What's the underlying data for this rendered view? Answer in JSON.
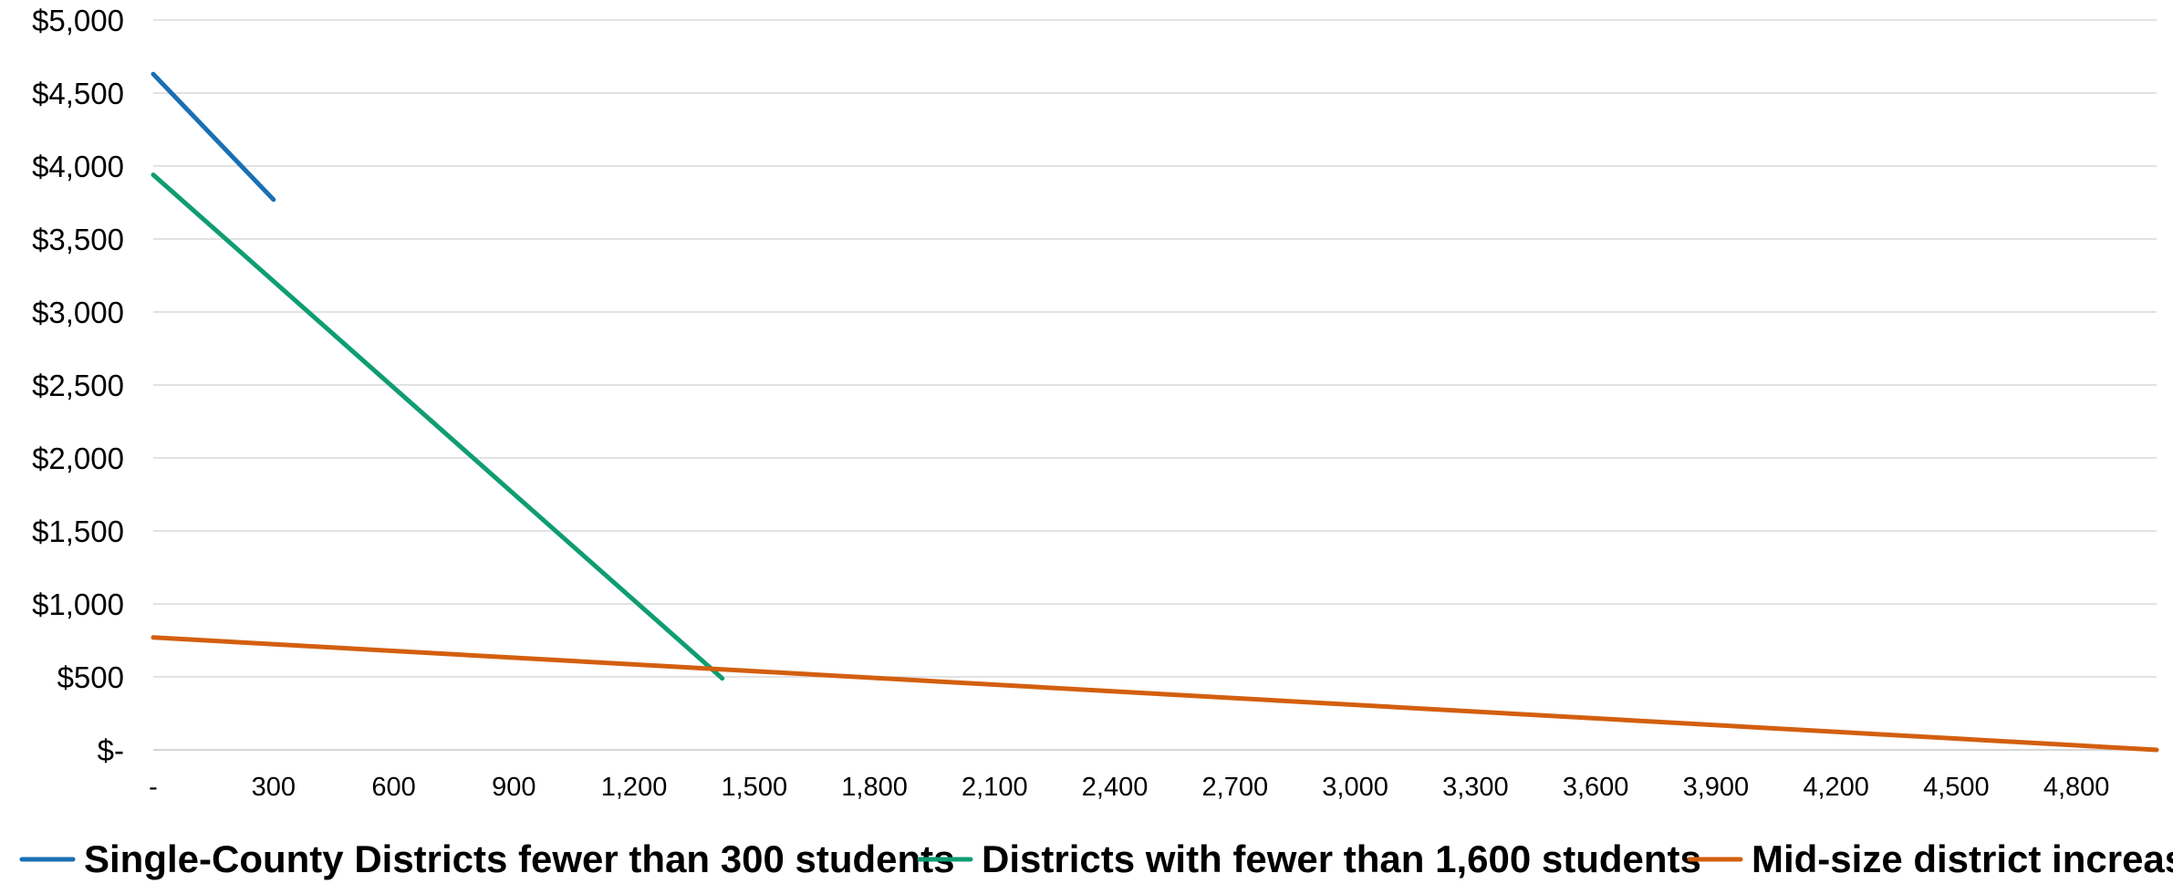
{
  "chart_data": {
    "type": "line",
    "title": "",
    "xlabel": "",
    "ylabel": "",
    "xlim": [
      0,
      5000
    ],
    "ylim": [
      0,
      5000
    ],
    "x_ticks": [
      0,
      300,
      600,
      900,
      1200,
      1500,
      1800,
      2100,
      2400,
      2700,
      3000,
      3300,
      3600,
      3900,
      4200,
      4500,
      4800
    ],
    "x_tick_labels": [
      "-",
      "300",
      "600",
      "900",
      "1,200",
      "1,500",
      "1,800",
      "2,100",
      "2,400",
      "2,700",
      "3,000",
      "3,300",
      "3,600",
      "3,900",
      "4,200",
      "4,500",
      "4,800"
    ],
    "y_ticks": [
      0,
      500,
      1000,
      1500,
      2000,
      2500,
      3000,
      3500,
      4000,
      4500,
      5000
    ],
    "y_tick_labels": [
      "$-",
      "$500",
      "$1,000",
      "$1,500",
      "$2,000",
      "$2,500",
      "$3,000",
      "$3,500",
      "$4,000",
      "$4,500",
      "$5,000"
    ],
    "grid": "horizontal",
    "legend_position": "bottom",
    "series": [
      {
        "name": "Single-County Districts fewer than 300 students",
        "color": "#1a6fb3",
        "x": [
          0,
          300
        ],
        "y": [
          4630,
          3770
        ]
      },
      {
        "name": "Districts with fewer than 1,600 students",
        "color": "#0f9d72",
        "x": [
          0,
          1420
        ],
        "y": [
          3940,
          490
        ]
      },
      {
        "name": "Mid-size district increase",
        "color": "#d35f0f",
        "x": [
          0,
          5000
        ],
        "y": [
          770,
          0
        ]
      }
    ]
  }
}
